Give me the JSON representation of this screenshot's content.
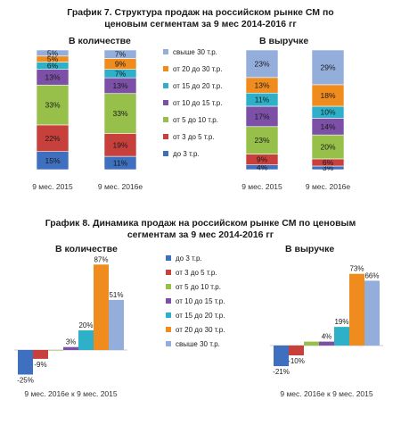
{
  "fig7": {
    "title_line1": "График 7. Структура продаж на  российском рынке СМ по",
    "title_line2": "ценовым сегментам за 9 мес 2014-2016 гг",
    "sub_qty": "В количестве",
    "sub_rev": "В выручке"
  },
  "fig8": {
    "title_line1": "График 8. Динамика продаж на российском рынке СМ по ценовым",
    "title_line2": "сегментам за 9 мес 2014-2016 гг",
    "sub_qty": "В количестве",
    "sub_rev": "В выручке"
  },
  "legend": [
    {
      "label": "свыше 30 т.р.",
      "color": "#94aedb"
    },
    {
      "label": "от 20 до 30 т.р.",
      "color": "#f08c1e"
    },
    {
      "label": "от 15 до 20 т.р.",
      "color": "#2eb0c8"
    },
    {
      "label": "от 10 до 15 т.р.",
      "color": "#7b50a6"
    },
    {
      "label": "от 5 до 10 т.р.",
      "color": "#96c04a"
    },
    {
      "label": "от 3 до 5 т.р.",
      "color": "#c8403c"
    },
    {
      "label": "до 3 т.р.",
      "color": "#3f6fbf"
    }
  ],
  "chart_data": [
    {
      "type": "bar",
      "stacked": true,
      "title": "В количестве",
      "categories": [
        "9 мес. 2015",
        "9 мес. 2016е"
      ],
      "series": [
        {
          "name": "до 3 т.р.",
          "values": [
            15,
            11
          ]
        },
        {
          "name": "от 3 до 5 т.р.",
          "values": [
            22,
            19
          ]
        },
        {
          "name": "от 5 до 10 т.р.",
          "values": [
            33,
            33
          ]
        },
        {
          "name": "от 10 до 15 т.р.",
          "values": [
            13,
            13
          ]
        },
        {
          "name": "от 15 до 20 т.р.",
          "values": [
            6,
            7
          ]
        },
        {
          "name": "от 20 до 30 т.р.",
          "values": [
            5,
            9
          ]
        },
        {
          "name": "свыше 30 т.р.",
          "values": [
            5,
            7
          ]
        }
      ],
      "ylim": [
        0,
        100
      ]
    },
    {
      "type": "bar",
      "stacked": true,
      "title": "В выручке",
      "categories": [
        "9 мес. 2015",
        "9 мес. 2016е"
      ],
      "series": [
        {
          "name": "до 3 т.р.",
          "values": [
            4,
            3
          ]
        },
        {
          "name": "от 3 до 5 т.р.",
          "values": [
            9,
            6
          ]
        },
        {
          "name": "от 5 до 10 т.р.",
          "values": [
            23,
            20
          ]
        },
        {
          "name": "от 10 до 15 т.р.",
          "values": [
            17,
            14
          ]
        },
        {
          "name": "от 15 до 20 т.р.",
          "values": [
            11,
            10
          ]
        },
        {
          "name": "от 20 до 30 т.р.",
          "values": [
            13,
            18
          ]
        },
        {
          "name": "свыше 30 т.р.",
          "values": [
            23,
            29
          ]
        }
      ],
      "ylim": [
        0,
        100
      ]
    },
    {
      "type": "bar",
      "title": "В количестве",
      "categories": [
        "9 мес. 2016е к 9 мес. 2015"
      ],
      "series": [
        {
          "name": "до 3 т.р.",
          "values": [
            -25
          ]
        },
        {
          "name": "от 3 до 5 т.р.",
          "values": [
            -9
          ]
        },
        {
          "name": "от 5 до 10 т.р.",
          "values": [
            0
          ]
        },
        {
          "name": "от 10 до 15 т.р.",
          "values": [
            3
          ]
        },
        {
          "name": "от 15 до 20 т.р.",
          "values": [
            20
          ]
        },
        {
          "name": "от 20 до 30 т.р.",
          "values": [
            87
          ]
        },
        {
          "name": "свыше 30 т.р.",
          "values": [
            51
          ]
        }
      ],
      "value_labels": [
        "-25%",
        "-9%",
        "",
        "3%",
        "20%",
        "87%",
        "51%"
      ],
      "ylim": [
        -30,
        90
      ]
    },
    {
      "type": "bar",
      "title": "В выручке",
      "categories": [
        "9 мес. 2016е к 9 мес. 2015"
      ],
      "series": [
        {
          "name": "до 3 т.р.",
          "values": [
            -21
          ]
        },
        {
          "name": "от 3 до 5 т.р.",
          "values": [
            -10
          ]
        },
        {
          "name": "от 5 до 10 т.р.",
          "values": [
            4
          ]
        },
        {
          "name": "от 10 до 15 т.р.",
          "values": [
            4
          ]
        },
        {
          "name": "от 15 до 20 т.р.",
          "values": [
            19
          ]
        },
        {
          "name": "от 20 до 30 т.р.",
          "values": [
            73
          ]
        },
        {
          "name": "свыше 30 т.р.",
          "values": [
            66
          ]
        }
      ],
      "value_labels": [
        "-21%",
        "-10%",
        "",
        "4%",
        "19%",
        "73%",
        "66%"
      ],
      "ylim": [
        -30,
        90
      ]
    }
  ]
}
